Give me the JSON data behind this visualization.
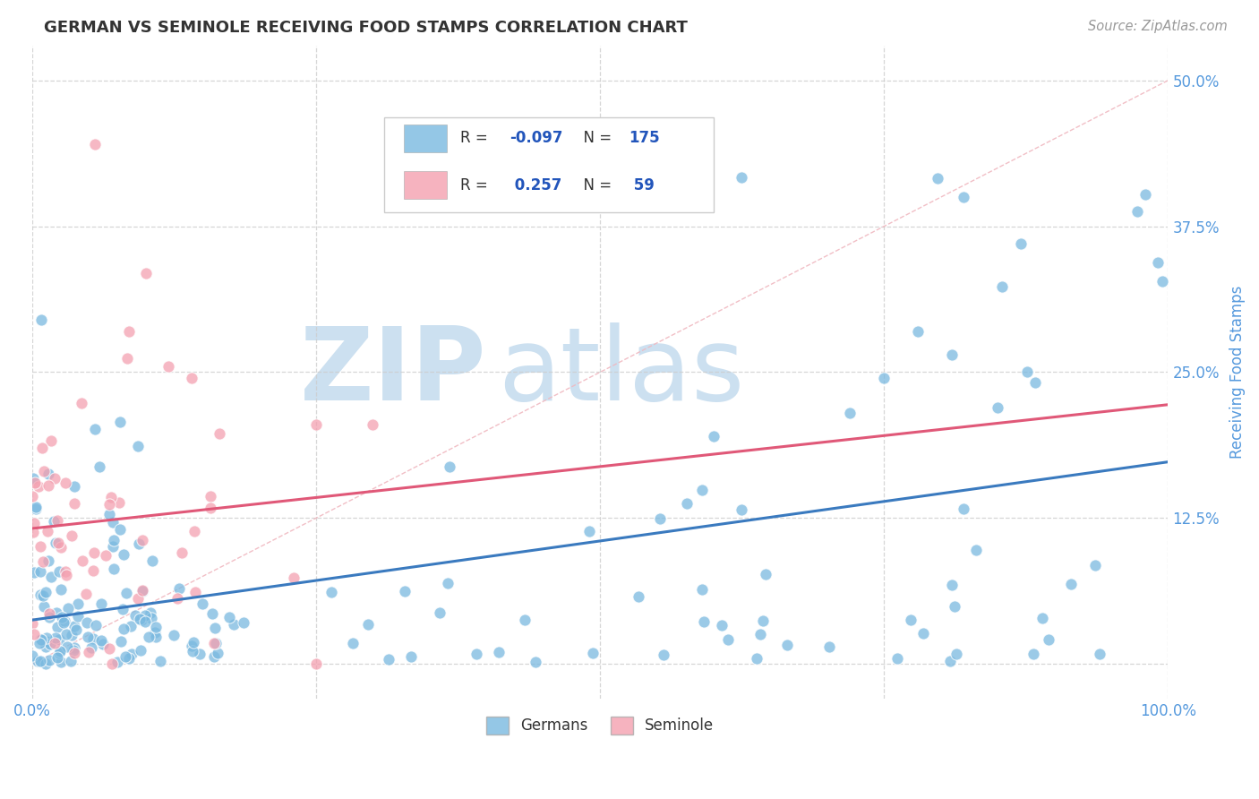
{
  "title": "GERMAN VS SEMINOLE RECEIVING FOOD STAMPS CORRELATION CHART",
  "source": "Source: ZipAtlas.com",
  "ylabel": "Receiving Food Stamps",
  "xlim": [
    0,
    1.0
  ],
  "ylim": [
    -0.03,
    0.53
  ],
  "german_color": "#7ab9e0",
  "seminole_color": "#f4a0b0",
  "german_line_color": "#3a7abf",
  "seminole_line_color": "#e05878",
  "german_R": -0.097,
  "german_N": 175,
  "seminole_R": 0.257,
  "seminole_N": 59,
  "background_color": "#ffffff",
  "grid_color": "#cccccc",
  "title_color": "#333333",
  "axis_color": "#5599dd",
  "watermark_zip": "ZIP",
  "watermark_atlas": "atlas",
  "watermark_color": "#cce0f0",
  "legend_text_color": "#2255bb",
  "legend_R_color": "#e03060"
}
